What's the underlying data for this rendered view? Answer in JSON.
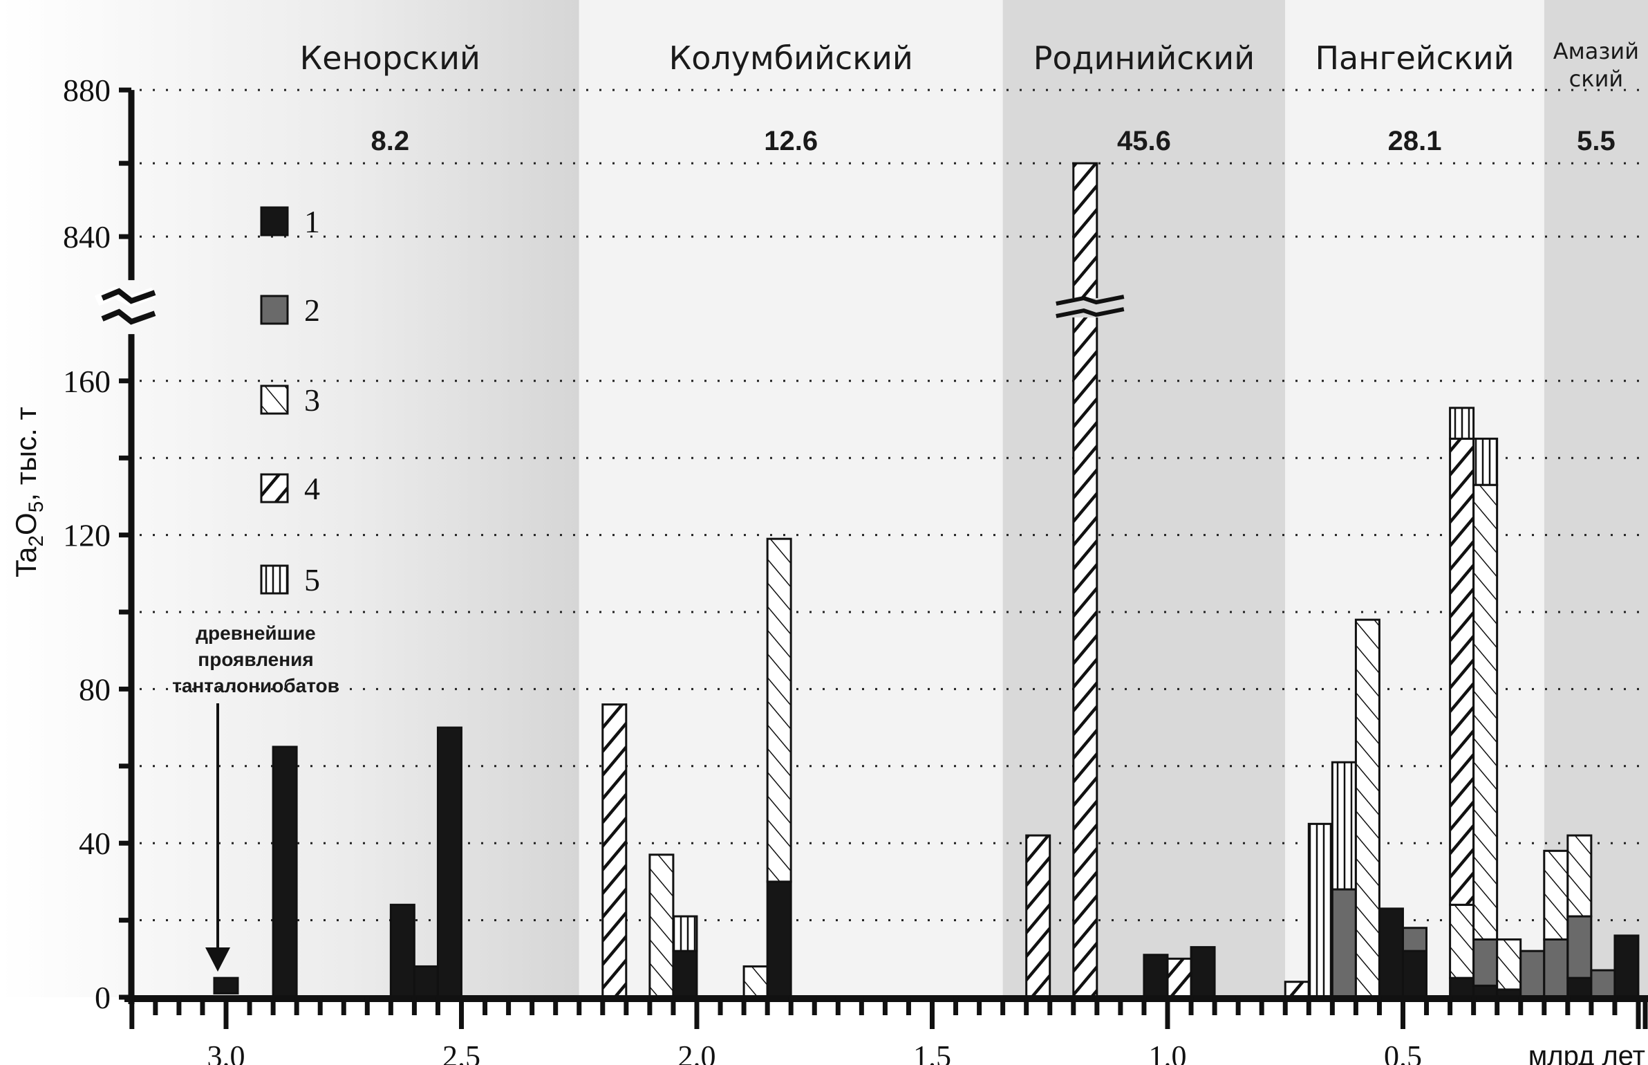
{
  "chart_data": {
    "type": "bar",
    "stacked": true,
    "xlabel": "млрд лет",
    "ylabel": "Ta2O5, тыс. т",
    "ylabel_parts": {
      "main": "Ta",
      "sub1": "2",
      "mid": "O",
      "sub2": "5",
      "tail": ",  тыс. т"
    },
    "x_ticks": [
      "3.0",
      "2.5",
      "2.0",
      "1.5",
      "1.0",
      "0.5"
    ],
    "x_tick_values": [
      3.0,
      2.5,
      2.0,
      1.5,
      1.0,
      0.5
    ],
    "x_minor_step": 0.05,
    "xlim": [
      3.2,
      0.0
    ],
    "x_reversed": true,
    "y_ticks_lower": [
      "0",
      "40",
      "80",
      "120",
      "160"
    ],
    "y_tick_values_lower": [
      0,
      40,
      80,
      120,
      160
    ],
    "y_ticks_upper": [
      "840",
      "880"
    ],
    "y_tick_values_upper": [
      840,
      880
    ],
    "y_axis_break": [
      170,
      830
    ],
    "ylim": [
      0,
      880
    ],
    "grid": "dotted horizontal every 20",
    "legend": [
      {
        "key": "1",
        "label": "1",
        "pattern": "black"
      },
      {
        "key": "2",
        "label": "2",
        "pattern": "gray"
      },
      {
        "key": "3",
        "label": "3",
        "pattern": "fine-diagonal"
      },
      {
        "key": "4",
        "label": "4",
        "pattern": "bold-diagonal"
      },
      {
        "key": "5",
        "label": "5",
        "pattern": "vertical"
      }
    ],
    "legend_position": "top-left",
    "supercontinent_cycles": [
      {
        "name": "Кенорский",
        "from": 3.2,
        "to": 2.25,
        "total": "8.2"
      },
      {
        "name": "Колумбийский",
        "from": 2.25,
        "to": 1.35,
        "total": "12.6"
      },
      {
        "name": "Родинийский",
        "from": 1.35,
        "to": 0.75,
        "total": "45.6"
      },
      {
        "name": "Пангейский",
        "from": 0.75,
        "to": 0.2,
        "total": "28.1"
      },
      {
        "name_line1": "Амазий",
        "name_line2": "ский",
        "name": "Амазийский",
        "from": 0.2,
        "to": 0.0,
        "total": "5.5"
      }
    ],
    "annotation": {
      "lines": [
        "древнейшие",
        "проявления",
        "танталониобатов"
      ],
      "points_to_age": 3.0
    },
    "bars": [
      {
        "age": 3.0,
        "segments": [
          {
            "type": "1",
            "value": 4,
            "floating_from": 1
          }
        ]
      },
      {
        "age": 2.875,
        "segments": [
          {
            "type": "1",
            "value": 65
          }
        ]
      },
      {
        "age": 2.625,
        "segments": [
          {
            "type": "1",
            "value": 24
          }
        ]
      },
      {
        "age": 2.575,
        "segments": [
          {
            "type": "1",
            "value": 8
          }
        ]
      },
      {
        "age": 2.525,
        "segments": [
          {
            "type": "1",
            "value": 70
          }
        ]
      },
      {
        "age": 2.175,
        "segments": [
          {
            "type": "4",
            "value": 76
          }
        ]
      },
      {
        "age": 2.075,
        "segments": [
          {
            "type": "3",
            "value": 37
          }
        ]
      },
      {
        "age": 2.025,
        "segments": [
          {
            "type": "1",
            "value": 12
          },
          {
            "type": "5",
            "value": 9
          }
        ]
      },
      {
        "age": 1.875,
        "segments": [
          {
            "type": "3",
            "value": 8
          }
        ]
      },
      {
        "age": 1.825,
        "segments": [
          {
            "type": "1",
            "value": 30
          },
          {
            "type": "3",
            "value": 89
          }
        ]
      },
      {
        "age": 1.275,
        "segments": [
          {
            "type": "4",
            "value": 42
          }
        ]
      },
      {
        "age": 1.175,
        "segments": [
          {
            "type": "4",
            "value": 860
          }
        ]
      },
      {
        "age": 1.025,
        "segments": [
          {
            "type": "1",
            "value": 11
          }
        ]
      },
      {
        "age": 0.975,
        "segments": [
          {
            "type": "4",
            "value": 10
          }
        ]
      },
      {
        "age": 0.925,
        "segments": [
          {
            "type": "1",
            "value": 13
          }
        ]
      },
      {
        "age": 0.725,
        "segments": [
          {
            "type": "4",
            "value": 4
          }
        ]
      },
      {
        "age": 0.675,
        "segments": [
          {
            "type": "5",
            "value": 45
          }
        ]
      },
      {
        "age": 0.625,
        "segments": [
          {
            "type": "2",
            "value": 28
          },
          {
            "type": "5",
            "value": 33
          }
        ]
      },
      {
        "age": 0.575,
        "segments": [
          {
            "type": "3",
            "value": 98
          }
        ]
      },
      {
        "age": 0.525,
        "segments": [
          {
            "type": "1",
            "value": 23
          }
        ]
      },
      {
        "age": 0.475,
        "segments": [
          {
            "type": "1",
            "value": 12
          },
          {
            "type": "2",
            "value": 6
          }
        ]
      },
      {
        "age": 0.375,
        "segments": [
          {
            "type": "1",
            "value": 5
          },
          {
            "type": "3",
            "value": 19
          },
          {
            "type": "4",
            "value": 121
          },
          {
            "type": "5",
            "value": 8
          }
        ]
      },
      {
        "age": 0.325,
        "segments": [
          {
            "type": "1",
            "value": 3
          },
          {
            "type": "2",
            "value": 12
          },
          {
            "type": "3",
            "value": 118
          },
          {
            "type": "5",
            "value": 12
          }
        ]
      },
      {
        "age": 0.275,
        "segments": [
          {
            "type": "1",
            "value": 2
          },
          {
            "type": "3",
            "value": 13
          }
        ]
      },
      {
        "age": 0.225,
        "segments": [
          {
            "type": "2",
            "value": 12
          }
        ]
      },
      {
        "age": 0.175,
        "segments": [
          {
            "type": "2",
            "value": 15
          },
          {
            "type": "3",
            "value": 23
          }
        ]
      },
      {
        "age": 0.125,
        "segments": [
          {
            "type": "1",
            "value": 5
          },
          {
            "type": "2",
            "value": 16
          },
          {
            "type": "3",
            "value": 21
          }
        ]
      },
      {
        "age": 0.075,
        "segments": [
          {
            "type": "2",
            "value": 7
          }
        ]
      },
      {
        "age": 0.025,
        "segments": [
          {
            "type": "1",
            "value": 16
          }
        ]
      }
    ]
  }
}
